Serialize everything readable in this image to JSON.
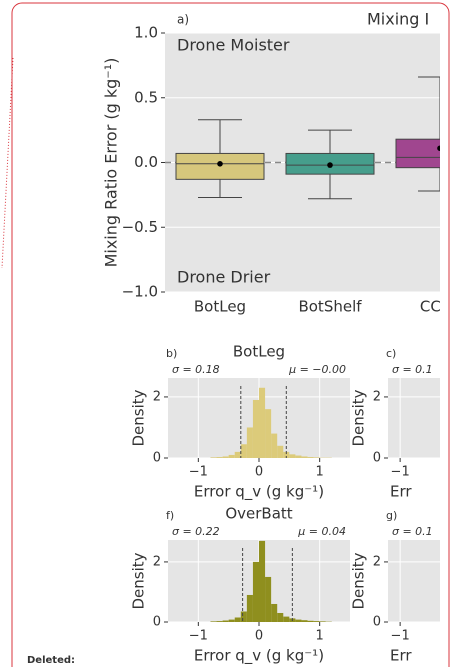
{
  "chart_data": [
    {
      "type": "box",
      "title": "Mixing I",
      "panel": "a)",
      "ylabel": "Mixing Ratio Error (g kg⁻¹)",
      "annotations": [
        "Drone Moister",
        "Drone Drier"
      ],
      "categories": [
        "BotLeg",
        "BotShelf",
        "CCWI"
      ],
      "boxes": [
        {
          "whislo": -0.27,
          "q1": -0.13,
          "med": -0.01,
          "q3": 0.07,
          "whishi": 0.33,
          "mean": -0.01
        },
        {
          "whislo": -0.28,
          "q1": -0.09,
          "med": -0.02,
          "q3": 0.07,
          "whishi": 0.25,
          "mean": -0.02
        },
        {
          "whislo": -0.22,
          "q1": -0.04,
          "med": 0.04,
          "q3": 0.18,
          "whishi": 0.66,
          "mean": 0.11
        }
      ],
      "colors": [
        "#d6c77c",
        "#469e8c",
        "#a0468f"
      ],
      "reference_line": 0,
      "ylim": [
        -1.0,
        1.0
      ],
      "yticks": [
        {
          "value": 1,
          "label": "1.0"
        },
        {
          "value": 0.5,
          "label": "0.5"
        },
        {
          "value": 0,
          "label": "0.0"
        },
        {
          "value": -0.5,
          "label": "−0.5"
        },
        {
          "value": -1,
          "label": "−1.0"
        }
      ],
      "grid": true
    },
    {
      "type": "histogram",
      "title": "BotLeg",
      "panel": "b)",
      "ylabel": "Density",
      "xlabel": "Error q_v (g kg⁻¹)",
      "annotations": [
        "σ = 0.18",
        "μ = −0.00"
      ],
      "color": "#dccb7a",
      "bins": [
        -0.8,
        -0.7,
        -0.6,
        -0.5,
        -0.4,
        -0.3,
        -0.2,
        -0.1,
        0,
        0.1,
        0.2,
        0.3,
        0.4,
        0.5,
        0.6,
        0.7,
        0.8,
        0.9,
        1.0,
        1.1,
        1.2
      ],
      "values": [
        0.02,
        0.03,
        0.05,
        0.1,
        0.2,
        0.45,
        1.0,
        1.9,
        2.3,
        1.6,
        0.8,
        0.4,
        0.2,
        0.12,
        0.08,
        0.05,
        0.03,
        0.02,
        0.01,
        0.01
      ],
      "vlines": [
        -0.3,
        0.45
      ],
      "xlim": [
        -1.5,
        1.5
      ],
      "ylim": [
        0,
        2.62
      ],
      "xticks": [
        {
          "value": -1,
          "label": "−1"
        },
        0,
        1
      ],
      "yticks": [
        0,
        2
      ],
      "grid": true
    },
    {
      "type": "histogram",
      "panel": "c)",
      "ylabel": "Density",
      "xlabel": "Err",
      "annotations": [
        "σ = 0.1"
      ],
      "xlim": [
        -1.2,
        1.8
      ],
      "ylim": [
        0,
        2.62
      ],
      "xticks": [
        {
          "value": -1,
          "label": "−1"
        }
      ],
      "yticks": [
        0,
        2
      ],
      "grid": true
    },
    {
      "type": "histogram",
      "title": "OverBatt",
      "panel": "f)",
      "ylabel": "Density",
      "xlabel": "Error q_v (g kg⁻¹)",
      "annotations": [
        "σ = 0.22",
        "μ = 0.04"
      ],
      "color": "#8f8f1e",
      "bins": [
        -0.8,
        -0.7,
        -0.6,
        -0.5,
        -0.4,
        -0.3,
        -0.2,
        -0.1,
        0,
        0.1,
        0.2,
        0.3,
        0.4,
        0.5,
        0.6,
        0.7,
        0.8,
        0.9,
        1.0,
        1.1,
        1.2
      ],
      "values": [
        0.02,
        0.03,
        0.05,
        0.08,
        0.15,
        0.35,
        0.9,
        2.0,
        2.7,
        1.5,
        0.6,
        0.3,
        0.18,
        0.12,
        0.08,
        0.06,
        0.04,
        0.03,
        0.02,
        0.01
      ],
      "vlines": [
        -0.27,
        0.55
      ],
      "xlim": [
        -1.5,
        1.5
      ],
      "ylim": [
        0,
        2.73
      ],
      "xticks": [
        {
          "value": -1,
          "label": "−1"
        },
        0,
        1
      ],
      "yticks": [
        0,
        2
      ],
      "grid": true
    },
    {
      "type": "histogram",
      "panel": "g)",
      "ylabel": "Density",
      "xlabel": "Err",
      "annotations": [
        "σ = 0.1"
      ],
      "xlim": [
        -1.2,
        1.8
      ],
      "ylim": [
        0,
        2.73
      ],
      "xticks": [
        {
          "value": -1,
          "label": "−1"
        }
      ],
      "yticks": [
        0,
        2
      ],
      "grid": true
    }
  ],
  "comment": {
    "label": "Deleted:"
  }
}
